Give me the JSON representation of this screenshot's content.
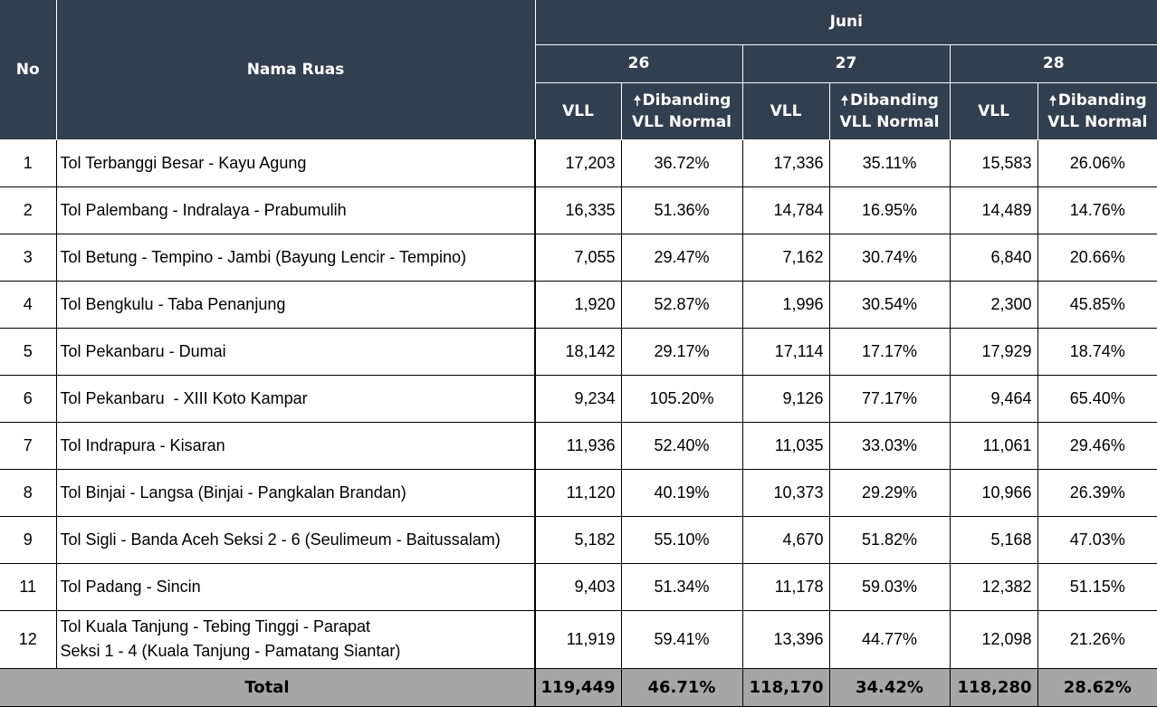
{
  "header": {
    "no": "No",
    "nama_ruas": "Nama Ruas",
    "month": "Juni",
    "days": [
      "26",
      "27",
      "28"
    ],
    "vll": "VLL",
    "dibanding_line1": "Dibanding",
    "dibanding_line2": "VLL Normal"
  },
  "rows": [
    {
      "no": "1",
      "name": "Tol Terbanggi Besar - Kayu Agung",
      "v26": "17,203",
      "p26": "36.72%",
      "v27": "17,336",
      "p27": "35.11%",
      "v28": "15,583",
      "p28": "26.06%"
    },
    {
      "no": "2",
      "name": "Tol Palembang - Indralaya - Prabumulih",
      "v26": "16,335",
      "p26": "51.36%",
      "v27": "14,784",
      "p27": "16.95%",
      "v28": "14,489",
      "p28": "14.76%"
    },
    {
      "no": "3",
      "name": "Tol Betung - Tempino - Jambi (Bayung Lencir - Tempino)",
      "v26": "7,055",
      "p26": "29.47%",
      "v27": "7,162",
      "p27": "30.74%",
      "v28": "6,840",
      "p28": "20.66%"
    },
    {
      "no": "4",
      "name": "Tol Bengkulu - Taba Penanjung",
      "v26": "1,920",
      "p26": "52.87%",
      "v27": "1,996",
      "p27": "30.54%",
      "v28": "2,300",
      "p28": "45.85%"
    },
    {
      "no": "5",
      "name": "Tol Pekanbaru - Dumai",
      "v26": "18,142",
      "p26": "29.17%",
      "v27": "17,114",
      "p27": "17.17%",
      "v28": "17,929",
      "p28": "18.74%"
    },
    {
      "no": "6",
      "name": "Tol Pekanbaru  - XIII Koto Kampar",
      "v26": "9,234",
      "p26": "105.20%",
      "v27": "9,126",
      "p27": "77.17%",
      "v28": "9,464",
      "p28": "65.40%"
    },
    {
      "no": "7",
      "name": "Tol Indrapura - Kisaran",
      "v26": "11,936",
      "p26": "52.40%",
      "v27": "11,035",
      "p27": "33.03%",
      "v28": "11,061",
      "p28": "29.46%"
    },
    {
      "no": "8",
      "name": "Tol Binjai - Langsa (Binjai - Pangkalan Brandan)",
      "v26": "11,120",
      "p26": "40.19%",
      "v27": "10,373",
      "p27": "29.29%",
      "v28": "10,966",
      "p28": "26.39%"
    },
    {
      "no": "9",
      "name": "Tol Sigli - Banda Aceh Seksi 2 - 6 (Seulimeum - Baitussalam)",
      "v26": "5,182",
      "p26": "55.10%",
      "v27": "4,670",
      "p27": "51.82%",
      "v28": "5,168",
      "p28": "47.03%"
    },
    {
      "no": "11",
      "name": "Tol Padang - Sincin",
      "v26": "9,403",
      "p26": "51.34%",
      "v27": "11,178",
      "p27": "59.03%",
      "v28": "12,382",
      "p28": "51.15%"
    }
  ],
  "row12": {
    "no": "12",
    "name_line1": "Tol Kuala Tanjung - Tebing Tinggi - Parapat",
    "name_line2": "Seksi 1 - 4 (Kuala Tanjung - Pamatang Siantar)",
    "v26": "11,919",
    "p26": "59.41%",
    "v27": "13,396",
    "p27": "44.77%",
    "v28": "12,098",
    "p28": "21.26%"
  },
  "total": {
    "label": "Total",
    "v26": "119,449",
    "p26": "46.71%",
    "v27": "118,170",
    "p27": "34.42%",
    "v28": "118,280",
    "p28": "28.62%"
  },
  "colors": {
    "header_bg": "#323f4f",
    "total_bg": "#a6a6a6"
  }
}
